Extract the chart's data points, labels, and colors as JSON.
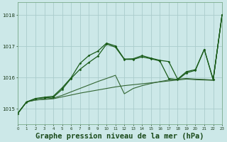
{
  "background_color": "#cce8e8",
  "grid_color": "#aacccc",
  "line_color_dark": "#1a5c1a",
  "line_color_mid": "#336633",
  "xlabel": "Graphe pression niveau de la mer (hPa)",
  "xlabel_fontsize": 7.5,
  "ylabel_ticks": [
    1015,
    1016,
    1017,
    1018
  ],
  "xlim": [
    0,
    23
  ],
  "ylim": [
    1014.5,
    1018.4
  ],
  "s1_y": [
    1014.85,
    1015.22,
    1015.28,
    1015.3,
    1015.32,
    1015.38,
    1015.44,
    1015.5,
    1015.55,
    1015.6,
    1015.65,
    1015.7,
    1015.74,
    1015.77,
    1015.8,
    1015.83,
    1015.86,
    1015.89,
    1015.92,
    1015.95,
    1015.93,
    1015.92,
    1015.91,
    1018.0
  ],
  "s2_y": [
    1014.85,
    1015.22,
    1015.28,
    1015.31,
    1015.34,
    1015.43,
    1015.54,
    1015.65,
    1015.76,
    1015.87,
    1015.97,
    1016.07,
    1015.48,
    1015.65,
    1015.74,
    1015.81,
    1015.87,
    1015.92,
    1015.95,
    1015.97,
    1015.95,
    1015.94,
    1015.92,
    1018.0
  ],
  "s3_y": [
    1014.85,
    1015.22,
    1015.32,
    1015.35,
    1015.37,
    1015.62,
    1015.97,
    1016.26,
    1016.48,
    1016.68,
    1017.07,
    1016.97,
    1016.58,
    1016.58,
    1016.66,
    1016.6,
    1016.53,
    1015.97,
    1015.93,
    1016.15,
    1016.23,
    1016.9,
    1015.93,
    1018.0
  ],
  "s4_y": [
    1014.85,
    1015.22,
    1015.33,
    1015.37,
    1015.4,
    1015.67,
    1015.99,
    1016.45,
    1016.7,
    1016.84,
    1017.1,
    1017.01,
    1016.59,
    1016.6,
    1016.7,
    1016.62,
    1016.55,
    1016.51,
    1015.95,
    1016.19,
    1016.25,
    1016.9,
    1015.93,
    1018.0
  ]
}
